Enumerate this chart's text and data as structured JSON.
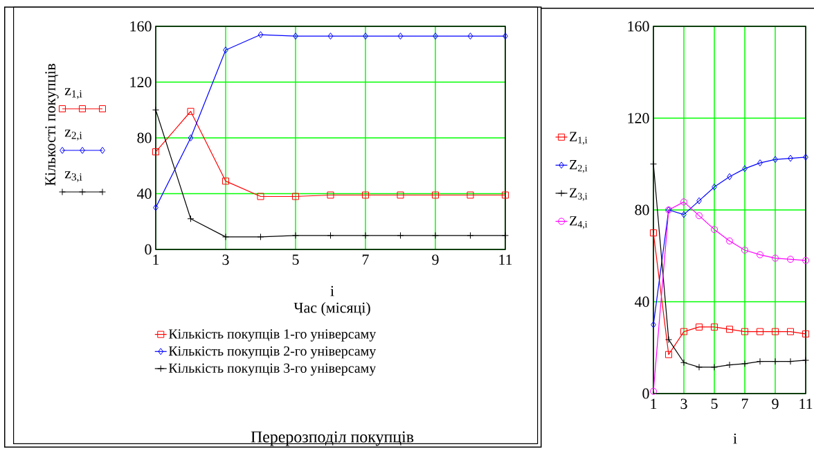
{
  "chart_data": [
    {
      "type": "line",
      "title": "Перерозподіл покупців",
      "xlabel": "i",
      "ylabel": "Кількості покупців",
      "annotations": [
        "z$_{1,i}$",
        "z$_{2,i}$",
        "z$_{3,i}$",
        "Час (місяці)"
      ],
      "x": [
        1,
        2,
        3,
        4,
        5,
        6,
        7,
        8,
        9,
        10,
        11
      ],
      "xlim": [
        1,
        11
      ],
      "ylim": [
        0,
        160
      ],
      "xticks": [
        1,
        3,
        5,
        7,
        9,
        11
      ],
      "yticks": [
        0,
        40,
        80,
        120,
        160
      ],
      "grid": true,
      "legend": "bottom",
      "series": [
        {
          "name": "Кількість покупців 1-го універсаму",
          "color": "#ff0000",
          "marker": "square",
          "values": [
            70,
            99,
            49,
            38,
            38,
            39,
            39,
            39,
            39,
            39,
            39
          ]
        },
        {
          "name": "Кількість покупців 2-го універсаму",
          "color": "#0000ff",
          "marker": "diamond",
          "values": [
            30,
            80,
            143,
            154,
            153,
            153,
            153,
            153,
            153,
            153,
            153
          ]
        },
        {
          "name": "Кількість покупців 3-го універсаму",
          "color": "#000000",
          "marker": "cross",
          "values": [
            100,
            22,
            9,
            9,
            10,
            10,
            10,
            10,
            10,
            10,
            10
          ]
        }
      ]
    },
    {
      "type": "line",
      "xlabel": "i",
      "x": [
        1,
        2,
        3,
        4,
        5,
        6,
        7,
        8,
        9,
        10,
        11
      ],
      "xlim": [
        1,
        11
      ],
      "ylim": [
        0,
        160
      ],
      "xticks": [
        1,
        3,
        5,
        7,
        9,
        11
      ],
      "yticks": [
        0,
        40,
        80,
        120,
        160
      ],
      "grid": true,
      "legend": "left",
      "series": [
        {
          "name": "Z$_{1,i}$",
          "color": "#ff0000",
          "marker": "square",
          "values": [
            70,
            17,
            27,
            29,
            29,
            28,
            27,
            27,
            27,
            27,
            26
          ]
        },
        {
          "name": "Z$_{2,i}$",
          "color": "#0000ff",
          "marker": "diamond",
          "values": [
            30,
            80,
            78,
            84,
            90,
            94.5,
            98,
            100.5,
            102,
            102.5,
            103
          ]
        },
        {
          "name": "Z$_{3,i}$",
          "color": "#000000",
          "marker": "cross",
          "values": [
            100,
            23.5,
            13.5,
            11.5,
            11.5,
            12.5,
            13,
            14,
            14,
            14,
            14.5
          ]
        },
        {
          "name": "Z$_{4,i}$",
          "color": "#ff00ff",
          "marker": "circle",
          "values": [
            1,
            80,
            83.5,
            77.5,
            71.5,
            66.5,
            62.5,
            60.5,
            59,
            58.5,
            58
          ]
        }
      ]
    }
  ]
}
